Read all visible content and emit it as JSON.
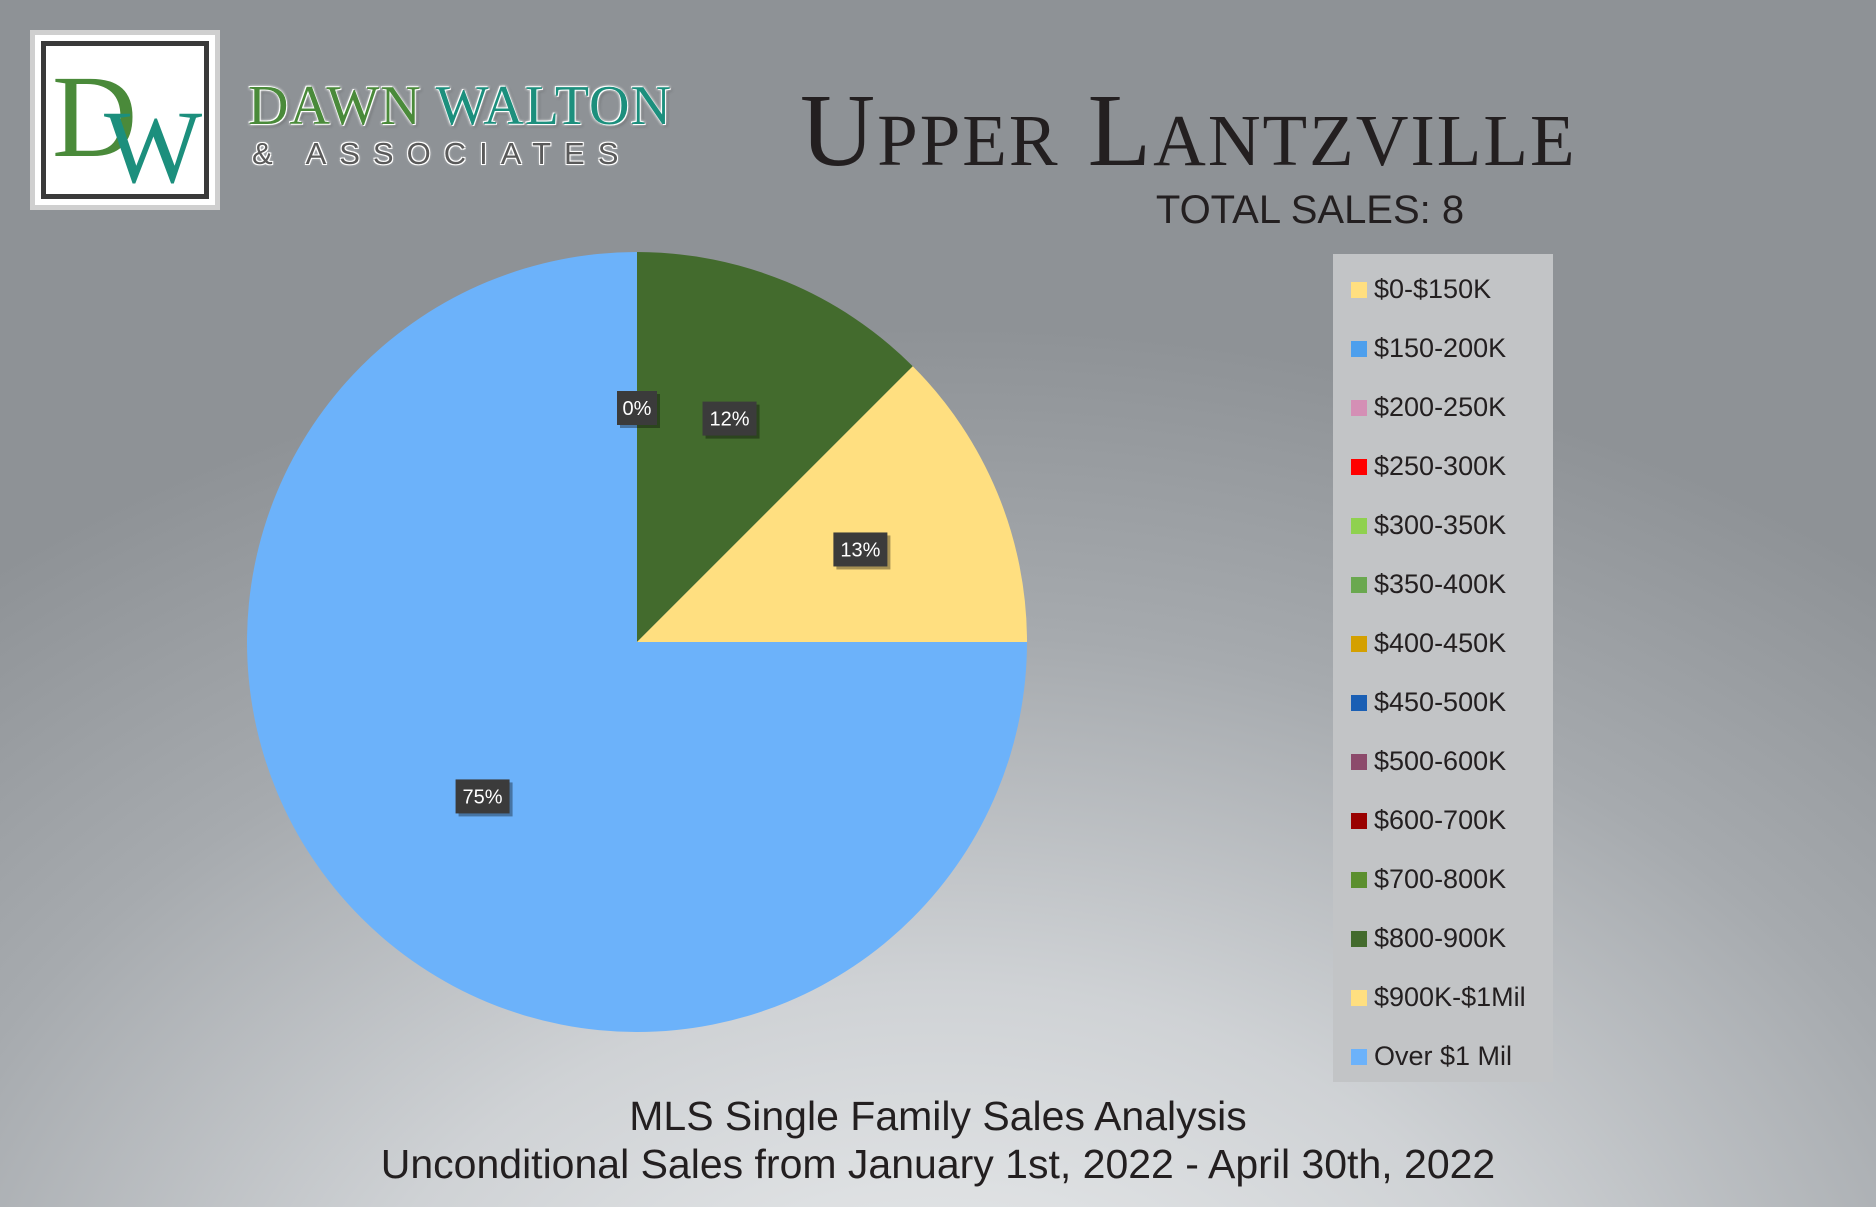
{
  "brand": {
    "monogram": "DW",
    "name_first": "DAWN",
    "name_last": "WALTON",
    "subtitle": "& ASSOCIATES"
  },
  "header": {
    "title": "Upper Lantzville",
    "total_sales": "TOTAL SALES: 8"
  },
  "footer": {
    "line1": "MLS Single Family Sales Analysis",
    "line2": "Unconditional Sales from January 1st, 2022 - April 30th, 2022"
  },
  "chart_data": {
    "type": "pie",
    "title": "",
    "start_angle_deg": 0,
    "direction": "clockwise",
    "legend_placement": "right",
    "categories": [
      "$0-$150K",
      "$150-200K",
      "$200-250K",
      "$250-300K",
      "$300-350K",
      "$350-400K",
      "$400-450K",
      "$450-500K",
      "$500-600K",
      "$600-700K",
      "$700-800K",
      "$800-900K",
      "$900K-$1Mil",
      "Over $1 Mil"
    ],
    "colors": [
      "#ffdf80",
      "#4d9fed",
      "#d48fb5",
      "#ff0000",
      "#8fd14f",
      "#6aa84f",
      "#d4a000",
      "#1a5fb4",
      "#8c4a6b",
      "#990000",
      "#5b8f2e",
      "#436b2d",
      "#ffdf80",
      "#6cb2fa"
    ],
    "slices": [
      {
        "category": "$800-900K",
        "value": 1,
        "label": "12%",
        "color": "#436b2d"
      },
      {
        "category": "$900K-$1Mil",
        "value": 1,
        "label": "13%",
        "color": "#ffdf80"
      },
      {
        "category": "Over $1 Mil",
        "value": 6,
        "label": "75%",
        "color": "#6cb2fa"
      }
    ],
    "zero_label": "0%"
  }
}
